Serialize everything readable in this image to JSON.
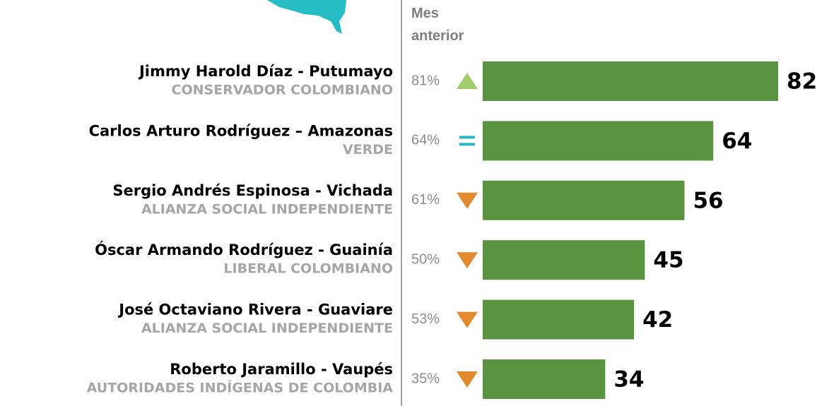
{
  "chart_data": {
    "type": "bar",
    "orientation": "horizontal",
    "header": "Mes anterior",
    "categories": [
      "Jimmy Harold Díaz - Putumayo",
      "Carlos Arturo Rodríguez – Amazonas",
      "Sergio Andrés Espinosa - Vichada",
      "Óscar Armando Rodríguez - Guainía",
      "José Octaviano Rivera - Guaviare",
      "Roberto Jaramillo - Vaupés"
    ],
    "parties": [
      "CONSERVADOR COLOMBIANO",
      "VERDE",
      "ALIANZA SOCIAL INDEPENDIENTE",
      "LIBERAL COLOMBIANO",
      "ALIANZA SOCIAL INDEPENDIENTE",
      "AUTORIDADES INDÍGENAS DE COLOMBIA"
    ],
    "previous_month": [
      "81%",
      "64%",
      "61%",
      "50%",
      "53%",
      "35%"
    ],
    "trend": [
      "up",
      "equal",
      "down",
      "down",
      "down",
      "down"
    ],
    "trend_colors": {
      "up": "#a3cc6b",
      "equal": "#2bb8c4",
      "down": "#e38a2f"
    },
    "values": [
      82,
      64,
      56,
      45,
      42,
      34
    ],
    "color": "#5a9440",
    "xlim": [
      0,
      82
    ]
  }
}
